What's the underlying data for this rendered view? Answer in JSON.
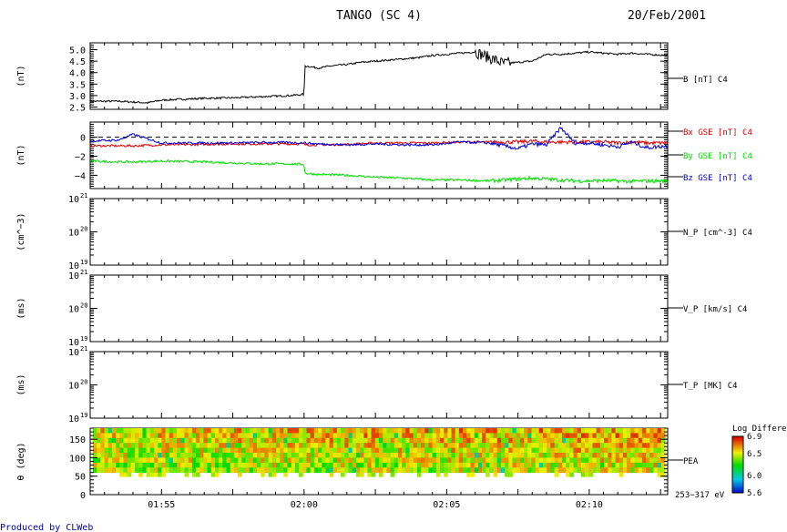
{
  "header": {
    "title": "TANGO (SC 4)",
    "date": "20/Feb/2001"
  },
  "footer": {
    "credit": "Produced by CLWeb"
  },
  "colors": {
    "black": "#000000",
    "red": "#dd0000",
    "green": "#00dd00",
    "blue": "#0000cc"
  },
  "chart_data": [
    {
      "type": "line",
      "ylabel": "(nT)",
      "legend": [
        "B [nT] C4"
      ],
      "ylim": [
        2.4,
        5.3
      ],
      "yticks": [
        "2.5",
        "3.0",
        "3.5",
        "4.0",
        "4.5",
        "5.0"
      ],
      "x_minutes": [
        0,
        2,
        3,
        4,
        5,
        8,
        10,
        12,
        14,
        15,
        15.05,
        16,
        17,
        18,
        19,
        20,
        21,
        22,
        23,
        24,
        25,
        26,
        27,
        28,
        29,
        30,
        31,
        32,
        33,
        34,
        35,
        36,
        37,
        38,
        39,
        40.5
      ],
      "series": [
        {
          "name": "B [nT] C4",
          "color": "black",
          "values": [
            2.75,
            2.75,
            2.72,
            2.68,
            2.8,
            2.88,
            2.9,
            2.95,
            3.0,
            3.05,
            4.3,
            4.2,
            4.3,
            4.35,
            4.45,
            4.5,
            4.55,
            4.6,
            4.65,
            4.75,
            4.8,
            4.85,
            4.9,
            4.65,
            4.4,
            4.45,
            4.5,
            4.8,
            4.8,
            4.85,
            4.9,
            4.85,
            4.8,
            4.85,
            4.8,
            4.75
          ]
        }
      ]
    },
    {
      "type": "line",
      "ylabel": "(nT)",
      "legend": [
        "Bx GSE [nT] C4",
        "By GSE [nT] C4",
        "Bz GSE [nT] C4"
      ],
      "ylim": [
        -5.4,
        1.6
      ],
      "yticks": [
        "0",
        "−2",
        "−4"
      ],
      "dashed_zero": true,
      "x_minutes": [
        0,
        2,
        3,
        5,
        8,
        10,
        12,
        14,
        15,
        15.05,
        16,
        18,
        20,
        22,
        24,
        26,
        28,
        30,
        31,
        32,
        33,
        34,
        35,
        36,
        37,
        38,
        39,
        40.5
      ],
      "series": [
        {
          "name": "Bx GSE [nT] C4",
          "color": "red",
          "values": [
            -0.9,
            -0.9,
            -0.9,
            -0.8,
            -0.75,
            -0.7,
            -0.7,
            -0.7,
            -0.7,
            -0.8,
            -0.8,
            -0.75,
            -0.6,
            -0.6,
            -0.6,
            -0.5,
            -0.5,
            -0.5,
            -0.4,
            -0.5,
            -0.5,
            -0.5,
            -0.5,
            -0.5,
            -0.6,
            -0.5,
            -0.6,
            -0.6
          ]
        },
        {
          "name": "By GSE [nT] C4",
          "color": "green",
          "values": [
            -2.5,
            -2.6,
            -2.6,
            -2.5,
            -2.6,
            -2.7,
            -2.8,
            -2.8,
            -2.85,
            -3.8,
            -3.9,
            -4.0,
            -4.2,
            -4.3,
            -4.5,
            -4.5,
            -4.6,
            -4.4,
            -4.3,
            -4.4,
            -4.5,
            -4.6,
            -4.6,
            -4.55,
            -4.6,
            -4.65,
            -4.6,
            -4.6
          ]
        },
        {
          "name": "Bz GSE [nT] C4",
          "color": "blue",
          "values": [
            -0.4,
            -0.3,
            0.3,
            -0.6,
            -0.6,
            -0.6,
            -0.55,
            -0.55,
            -0.6,
            -0.6,
            -0.7,
            -0.8,
            -0.7,
            -0.8,
            -0.8,
            -0.5,
            -0.6,
            -1.2,
            -0.7,
            -0.8,
            1.0,
            -0.6,
            -0.6,
            -0.8,
            -1.0,
            -0.5,
            -1.1,
            -0.9
          ]
        }
      ]
    },
    {
      "type": "line",
      "ylabel": "(cm^−3)",
      "legend": [
        "N_P [cm^-3] C4"
      ],
      "ylim": [
        1e+19,
        1e+21
      ],
      "yscale": "log",
      "yticks": [
        "10",
        "10",
        "10"
      ],
      "yticks_exp": [
        "21",
        "20",
        "19"
      ],
      "series": []
    },
    {
      "type": "line",
      "ylabel": "(ms)",
      "legend": [
        "V_P [km/s] C4"
      ],
      "ylim": [
        1e+19,
        1e+21
      ],
      "yscale": "log",
      "yticks": [
        "10",
        "10",
        "10"
      ],
      "yticks_exp": [
        "21",
        "20",
        "19"
      ],
      "series": []
    },
    {
      "type": "line",
      "ylabel": "(ms)",
      "legend": [
        "T_P [MK] C4"
      ],
      "ylim": [
        1e+19,
        1e+21
      ],
      "yscale": "log",
      "yticks": [
        "10",
        "10",
        "10"
      ],
      "yticks_exp": [
        "21",
        "20",
        "19"
      ],
      "series": []
    },
    {
      "type": "heatmap",
      "ylabel": "θ (deg)",
      "legend": [
        "PEA"
      ],
      "energy_label": "253−317 eV",
      "ylim": [
        0,
        180
      ],
      "yticks": [
        "150",
        "100",
        "50",
        "0"
      ],
      "colorbar": {
        "title": "Log Differential",
        "ticks": [
          "6.9",
          "6.5",
          "6.0",
          "5.6"
        ],
        "range": [
          5.6,
          6.9
        ]
      },
      "xlabel_ticks": [
        "01:55",
        "02:00",
        "02:05",
        "02:10"
      ],
      "tick_minutes": [
        5,
        15,
        25,
        35
      ]
    }
  ]
}
